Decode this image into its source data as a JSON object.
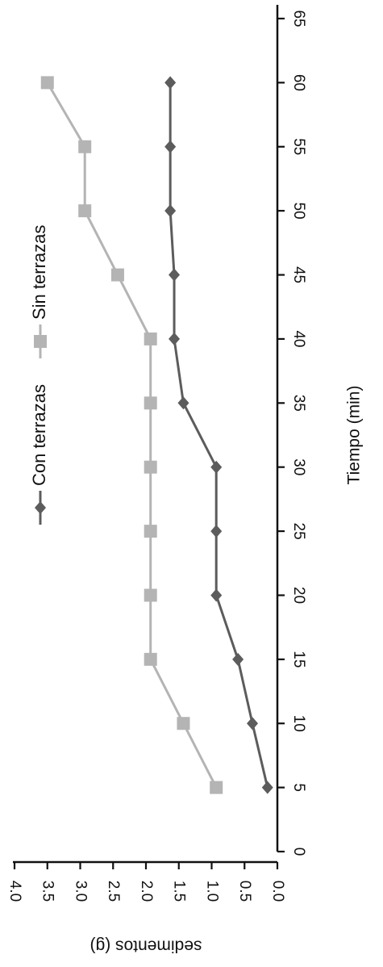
{
  "chart_data": {
    "type": "line",
    "title": "",
    "xlabel": "Tiempo (min)",
    "ylabel": "sedimentos (g)",
    "x": [
      5,
      10,
      15,
      20,
      25,
      30,
      35,
      40,
      45,
      50,
      55,
      60
    ],
    "xlim": [
      0,
      65
    ],
    "ylim": [
      0,
      4.0
    ],
    "xticks": [
      "0",
      "5",
      "10",
      "15",
      "20",
      "25",
      "30",
      "35",
      "40",
      "45",
      "50",
      "55",
      "60",
      "65"
    ],
    "yticks": [
      "0.0",
      "0.5",
      "1.0",
      "1.5",
      "2.0",
      "2.5",
      "3.0",
      "3.5",
      "4.0"
    ],
    "grid": false,
    "legend_position": "top",
    "orientation": "rotated 90° clockwise",
    "series": [
      {
        "name": "Con terrazas",
        "marker": "diamond",
        "color": "#5c5c5c",
        "values": [
          0.15,
          0.38,
          0.6,
          0.93,
          0.93,
          0.93,
          1.43,
          1.57,
          1.57,
          1.63,
          1.63,
          1.63
        ]
      },
      {
        "name": "Sin terrazas",
        "marker": "square",
        "color": "#b4b4b4",
        "values": [
          0.93,
          1.43,
          1.93,
          1.93,
          1.93,
          1.93,
          1.93,
          1.93,
          2.43,
          2.93,
          2.93,
          3.5
        ]
      }
    ]
  }
}
